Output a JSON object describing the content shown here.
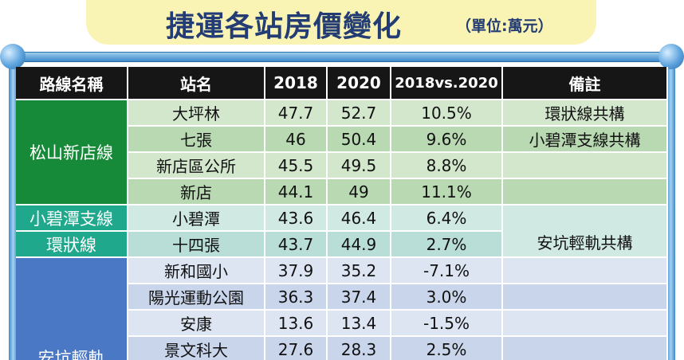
{
  "title": "捷運各站房價變化",
  "unit": "（單位:萬元）",
  "headers": [
    "路線名稱",
    "站名",
    "2018",
    "2020",
    "2018vs.2020",
    "備註"
  ],
  "lines": {
    "songshan": "松山新店線",
    "xiaobitan": "小碧潭支線",
    "circular": "環狀線",
    "ankeng": "安坑輕軌"
  },
  "rows": [
    {
      "station": "大坪林",
      "y2018": "47.7",
      "y2020": "52.7",
      "change": "10.5%",
      "remark": "環狀線共構"
    },
    {
      "station": "七張",
      "y2018": "46",
      "y2020": "50.4",
      "change": "9.6%",
      "remark": "小碧潭支線共構"
    },
    {
      "station": "新店區公所",
      "y2018": "45.5",
      "y2020": "49.5",
      "change": "8.8%",
      "remark": ""
    },
    {
      "station": "新店",
      "y2018": "44.1",
      "y2020": "49",
      "change": "11.1%",
      "remark": ""
    },
    {
      "station": "小碧潭",
      "y2018": "43.6",
      "y2020": "46.4",
      "change": "6.4%",
      "remark": ""
    },
    {
      "station": "十四張",
      "y2018": "43.7",
      "y2020": "44.9",
      "change": "2.7%",
      "remark": "安坑輕軌共構"
    },
    {
      "station": "新和國小",
      "y2018": "37.9",
      "y2020": "35.2",
      "change": "-7.1%",
      "remark": ""
    },
    {
      "station": "陽光運動公園",
      "y2018": "36.3",
      "y2020": "37.4",
      "change": "3.0%",
      "remark": ""
    },
    {
      "station": "安康",
      "y2018": "13.6",
      "y2020": "13.4",
      "change": "-1.5%",
      "remark": ""
    },
    {
      "station": "景文科大",
      "y2018": "27.6",
      "y2020": "28.3",
      "change": "2.5%",
      "remark": ""
    }
  ]
}
